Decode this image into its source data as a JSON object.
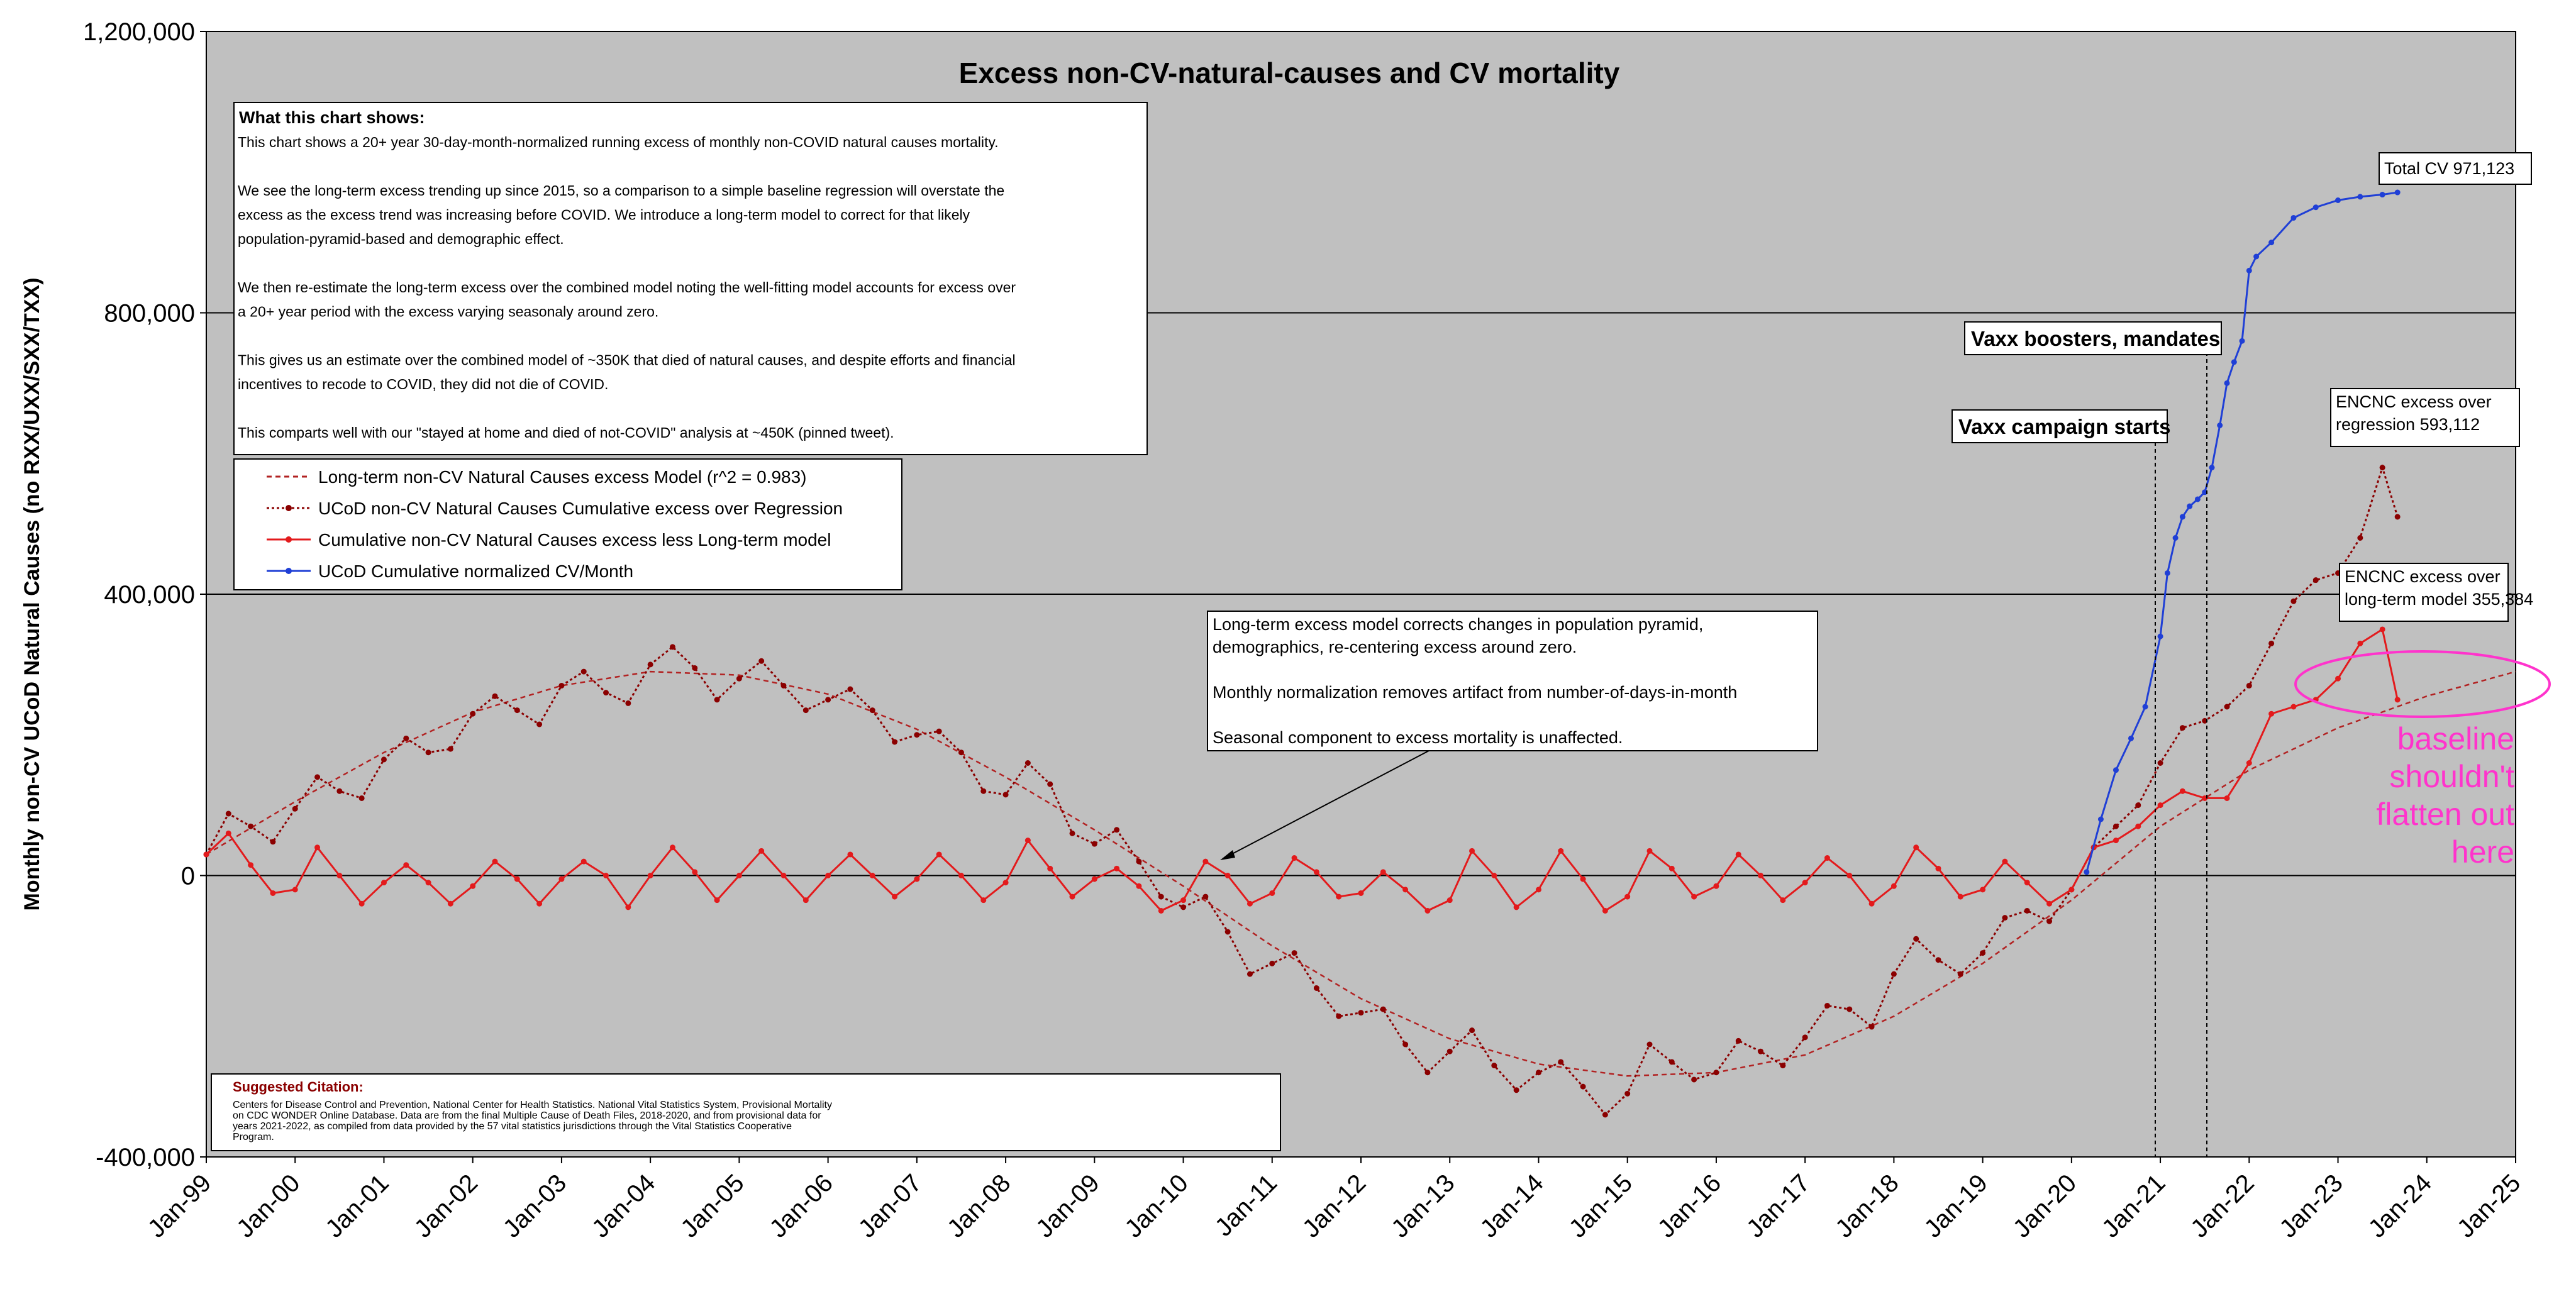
{
  "chart_data": {
    "type": "line",
    "title": "Excess non-CV-natural-causes and CV mortality",
    "ylabel": "Monthly non-CV UCoD Natural Causes (no RXX/UXX/SXX/TXX)",
    "xlabel": "",
    "ylim": [
      -400000,
      1200000
    ],
    "yticks": [
      -400000,
      0,
      400000,
      800000,
      1200000
    ],
    "ytick_labels": [
      "-400,000",
      "0",
      "400,000",
      "800,000",
      "1,200,000"
    ],
    "x_tick_labels": [
      "Jan-99",
      "Jan-00",
      "Jan-01",
      "Jan-02",
      "Jan-03",
      "Jan-04",
      "Jan-05",
      "Jan-06",
      "Jan-07",
      "Jan-08",
      "Jan-09",
      "Jan-10",
      "Jan-11",
      "Jan-12",
      "Jan-13",
      "Jan-14",
      "Jan-15",
      "Jan-16",
      "Jan-17",
      "Jan-18",
      "Jan-19",
      "Jan-20",
      "Jan-21",
      "Jan-22",
      "Jan-23",
      "Jan-24",
      "Jan-25"
    ],
    "xlim": [
      1999.0,
      2025.0
    ],
    "grid": "horizontal major lines at y ticks",
    "series": [
      {
        "name": "Long-term non-CV Natural Causes excess Model (r^2 = 0.983)",
        "color": "#b22222",
        "style": "dashed",
        "x": [
          1999.0,
          2000.0,
          2001.0,
          2002.0,
          2003.0,
          2004.0,
          2005.0,
          2006.0,
          2007.0,
          2008.0,
          2009.0,
          2010.0,
          2011.0,
          2012.0,
          2013.0,
          2014.0,
          2015.0,
          2016.0,
          2017.0,
          2018.0,
          2019.0,
          2020.0,
          2021.0,
          2022.0,
          2023.0,
          2024.0,
          2025.0
        ],
        "values": [
          30000,
          105000,
          175000,
          232000,
          270000,
          290000,
          285000,
          258000,
          208000,
          140000,
          65000,
          -15000,
          -100000,
          -175000,
          -232000,
          -268000,
          -285000,
          -280000,
          -255000,
          -200000,
          -125000,
          -35000,
          70000,
          150000,
          210000,
          255000,
          290000
        ]
      },
      {
        "name": "UCoD non-CV Natural Causes Cumulative excess over Regression",
        "color": "#8b0000",
        "style": "dotted-markers",
        "x": [
          1999.0,
          1999.25,
          1999.5,
          1999.75,
          2000.0,
          2000.25,
          2000.5,
          2000.75,
          2001.0,
          2001.25,
          2001.5,
          2001.75,
          2002.0,
          2002.25,
          2002.5,
          2002.75,
          2003.0,
          2003.25,
          2003.5,
          2003.75,
          2004.0,
          2004.25,
          2004.5,
          2004.75,
          2005.0,
          2005.25,
          2005.5,
          2005.75,
          2006.0,
          2006.25,
          2006.5,
          2006.75,
          2007.0,
          2007.25,
          2007.5,
          2007.75,
          2008.0,
          2008.25,
          2008.5,
          2008.75,
          2009.0,
          2009.25,
          2009.5,
          2009.75,
          2010.0,
          2010.25,
          2010.5,
          2010.75,
          2011.0,
          2011.25,
          2011.5,
          2011.75,
          2012.0,
          2012.25,
          2012.5,
          2012.75,
          2013.0,
          2013.25,
          2013.5,
          2013.75,
          2014.0,
          2014.25,
          2014.5,
          2014.75,
          2015.0,
          2015.25,
          2015.5,
          2015.75,
          2016.0,
          2016.25,
          2016.5,
          2016.75,
          2017.0,
          2017.25,
          2017.5,
          2017.75,
          2018.0,
          2018.25,
          2018.5,
          2018.75,
          2019.0,
          2019.25,
          2019.5,
          2019.75,
          2020.0,
          2020.25,
          2020.5,
          2020.75,
          2021.0,
          2021.25,
          2021.5,
          2021.75,
          2022.0,
          2022.25,
          2022.5,
          2022.75,
          2023.0,
          2023.25,
          2023.5,
          2023.67
        ],
        "values": [
          30000,
          88000,
          70000,
          48000,
          95000,
          140000,
          120000,
          110000,
          165000,
          195000,
          175000,
          180000,
          230000,
          255000,
          235000,
          215000,
          270000,
          290000,
          260000,
          245000,
          300000,
          325000,
          295000,
          250000,
          280000,
          305000,
          270000,
          235000,
          250000,
          265000,
          235000,
          190000,
          200000,
          205000,
          175000,
          120000,
          115000,
          160000,
          130000,
          60000,
          45000,
          65000,
          20000,
          -30000,
          -45000,
          -30000,
          -80000,
          -140000,
          -125000,
          -110000,
          -160000,
          -200000,
          -195000,
          -190000,
          -240000,
          -280000,
          -250000,
          -220000,
          -270000,
          -305000,
          -280000,
          -265000,
          -300000,
          -340000,
          -310000,
          -240000,
          -265000,
          -290000,
          -280000,
          -235000,
          -250000,
          -270000,
          -230000,
          -185000,
          -190000,
          -215000,
          -140000,
          -90000,
          -120000,
          -140000,
          -110000,
          -60000,
          -50000,
          -65000,
          -20000,
          40000,
          70000,
          100000,
          160000,
          210000,
          220000,
          240000,
          270000,
          330000,
          390000,
          420000,
          430000,
          480000,
          580000,
          510000
        ]
      },
      {
        "name": "Cumulative non-CV Natural Causes excess less Long-term model",
        "color": "#e31a1c",
        "style": "solid-markers",
        "x": [
          1999.0,
          1999.25,
          1999.5,
          1999.75,
          2000.0,
          2000.25,
          2000.5,
          2000.75,
          2001.0,
          2001.25,
          2001.5,
          2001.75,
          2002.0,
          2002.25,
          2002.5,
          2002.75,
          2003.0,
          2003.25,
          2003.5,
          2003.75,
          2004.0,
          2004.25,
          2004.5,
          2004.75,
          2005.0,
          2005.25,
          2005.5,
          2005.75,
          2006.0,
          2006.25,
          2006.5,
          2006.75,
          2007.0,
          2007.25,
          2007.5,
          2007.75,
          2008.0,
          2008.25,
          2008.5,
          2008.75,
          2009.0,
          2009.25,
          2009.5,
          2009.75,
          2010.0,
          2010.25,
          2010.5,
          2010.75,
          2011.0,
          2011.25,
          2011.5,
          2011.75,
          2012.0,
          2012.25,
          2012.5,
          2012.75,
          2013.0,
          2013.25,
          2013.5,
          2013.75,
          2014.0,
          2014.25,
          2014.5,
          2014.75,
          2015.0,
          2015.25,
          2015.5,
          2015.75,
          2016.0,
          2016.25,
          2016.5,
          2016.75,
          2017.0,
          2017.25,
          2017.5,
          2017.75,
          2018.0,
          2018.25,
          2018.5,
          2018.75,
          2019.0,
          2019.25,
          2019.5,
          2019.75,
          2020.0,
          2020.25,
          2020.5,
          2020.75,
          2021.0,
          2021.25,
          2021.5,
          2021.75,
          2022.0,
          2022.25,
          2022.5,
          2022.75,
          2023.0,
          2023.25,
          2023.5,
          2023.67
        ],
        "values": [
          30000,
          60000,
          15000,
          -25000,
          -20000,
          40000,
          0,
          -40000,
          -10000,
          15000,
          -10000,
          -40000,
          -15000,
          20000,
          -5000,
          -40000,
          -5000,
          20000,
          0,
          -45000,
          0,
          40000,
          5000,
          -35000,
          0,
          35000,
          0,
          -35000,
          0,
          30000,
          0,
          -30000,
          -5000,
          30000,
          0,
          -35000,
          -10000,
          50000,
          10000,
          -30000,
          -5000,
          10000,
          -15000,
          -50000,
          -35000,
          20000,
          0,
          -40000,
          -25000,
          25000,
          5000,
          -30000,
          -25000,
          5000,
          -20000,
          -50000,
          -35000,
          35000,
          0,
          -45000,
          -20000,
          35000,
          -5000,
          -50000,
          -30000,
          35000,
          10000,
          -30000,
          -15000,
          30000,
          0,
          -35000,
          -10000,
          25000,
          0,
          -40000,
          -15000,
          40000,
          10000,
          -30000,
          -20000,
          20000,
          -10000,
          -40000,
          -20000,
          40000,
          50000,
          70000,
          100000,
          120000,
          110000,
          110000,
          160000,
          230000,
          240000,
          250000,
          280000,
          330000,
          350000,
          250000
        ]
      },
      {
        "name": "UCoD Cumulative normalized CV/Month",
        "color": "#1f3fd6",
        "style": "solid-markers",
        "x": [
          2020.17,
          2020.33,
          2020.5,
          2020.67,
          2020.83,
          2021.0,
          2021.08,
          2021.17,
          2021.25,
          2021.33,
          2021.42,
          2021.5,
          2021.58,
          2021.67,
          2021.75,
          2021.83,
          2021.92,
          2022.0,
          2022.08,
          2022.25,
          2022.5,
          2022.75,
          2023.0,
          2023.25,
          2023.5,
          2023.67
        ],
        "values": [
          5000,
          80000,
          150000,
          195000,
          240000,
          340000,
          430000,
          480000,
          510000,
          525000,
          535000,
          545000,
          580000,
          640000,
          700000,
          730000,
          760000,
          860000,
          880000,
          900000,
          935000,
          950000,
          960000,
          965000,
          968000,
          971123
        ]
      }
    ],
    "legend": {
      "placement": "upper-left inside plot",
      "entries": [
        "Long-term non-CV Natural Causes excess Model (r^2 = 0.983)",
        "UCoD non-CV Natural Causes Cumulative excess over Regression",
        "Cumulative non-CV Natural Causes excess less Long-term model",
        "UCoD Cumulative normalized CV/Month"
      ]
    },
    "annotations": {
      "info_title": "What this chart shows:",
      "info_lines": [
        "This chart shows a 20+ year 30-day-month-normalized running excess of monthly non-COVID natural causes mortality.",
        "",
        "We see the long-term excess trending up since 2015, so a comparison to a simple baseline regression will overstate the",
        "excess as the excess trend was increasing before COVID.  We introduce a long-term model to correct for that likely",
        "population-pyramid-based and demographic effect.",
        "",
        "We then re-estimate the long-term excess over the combined model noting the well-fitting model accounts for excess over",
        "a 20+ year period with the excess varying seasonaly around zero.",
        "",
        "This gives us an estimate over the combined model of ~350K that died of natural causes, and despite efforts and financial",
        "incentives to recode to COVID, they did not die of COVID.",
        "",
        "This comparts well with our \"stayed at home and died of not-COVID\" analysis at ~450K (pinned tweet)."
      ],
      "model_note_lines": [
        "Long-term excess model corrects changes in population pyramid,",
        "demographics, re-centering excess around zero.",
        "",
        "Monthly normalization removes artifact from number-of-days-in-month",
        "",
        "Seasonal component to excess mortality is unaffected."
      ],
      "vaxx_campaign": "Vaxx campaign starts",
      "vaxx_boosters": "Vaxx boosters, mandates",
      "total_cv": "Total CV 971,123",
      "encnc_regression_lines": [
        "ENCNC excess over",
        "regression 593,112"
      ],
      "encnc_model_lines": [
        "ENCNC excess over",
        "long-term model 355,384"
      ],
      "baseline_lines": [
        "baseline",
        "shouldn't",
        "flatten out",
        "here"
      ],
      "citation_title": "Suggested Citation:",
      "citation_lines": [
        "Centers for Disease Control and Prevention, National Center for Health Statistics. National Vital Statistics System, Provisional Mortality",
        "on CDC WONDER Online Database. Data are from the final Multiple Cause of Death Files, 2018-2020, and from provisional data for",
        "years 2021-2022, as compiled from data provided by the 57 vital statistics jurisdictions through the Vital Statistics Cooperative",
        "Program."
      ]
    }
  }
}
